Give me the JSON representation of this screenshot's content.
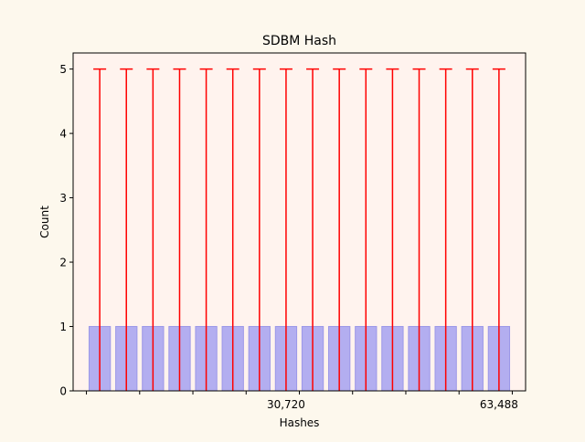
{
  "chart_data": {
    "type": "bar",
    "title": "SDBM Hash",
    "xlabel": "Hashes",
    "ylabel": "Count",
    "categories": [
      "",
      "",
      "",
      "",
      "",
      "",
      "",
      "",
      "",
      "",
      "",
      "",
      "",
      "",
      "",
      ""
    ],
    "values": [
      1,
      1,
      1,
      1,
      1,
      1,
      1,
      1,
      1,
      1,
      1,
      1,
      1,
      1,
      1,
      1
    ],
    "error_upper": [
      5,
      5,
      5,
      5,
      5,
      5,
      5,
      5,
      5,
      5,
      5,
      5,
      5,
      5,
      5,
      5
    ],
    "ylim": [
      0,
      5.25
    ],
    "yticks": [
      0,
      1,
      2,
      3,
      4,
      5
    ],
    "xtick_labels": [
      {
        "value": 30720,
        "label": "30,720"
      },
      {
        "value": 63488,
        "label": "63,488"
      }
    ],
    "bin_width": 4096,
    "first_bin_start": 0,
    "bar_color": "#b3aef0",
    "bar_edge_color": "#9b97e8",
    "errorbar_color": "#ff0000",
    "axes_background": "#fff3ee",
    "figure_background": "#fdf8ed",
    "grid": false
  }
}
